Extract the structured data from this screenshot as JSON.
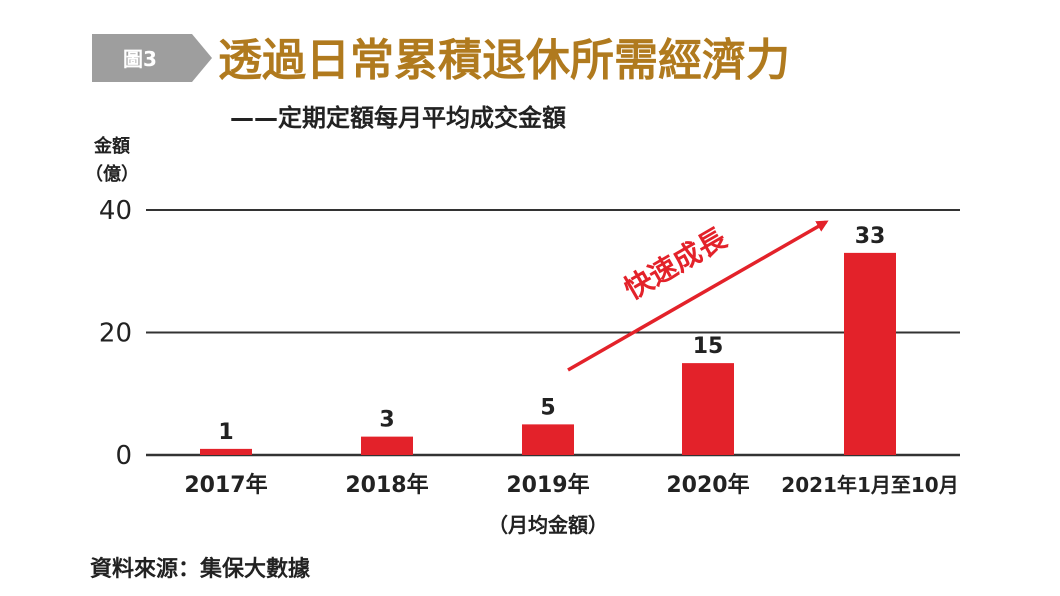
{
  "figure": {
    "label": "圖3",
    "title": "透過日常累積退休所需經濟力",
    "subtitle": "——定期定額每月平均成交金額",
    "source": "資料來源：集保大數據",
    "annotation": "快速成長"
  },
  "colors": {
    "bar": "#e3222a",
    "title": "#b07a1e",
    "label_box": "#9e9e9e",
    "grid": "#333333",
    "arrow": "#e3222a",
    "text": "#222222"
  },
  "chart_data": {
    "type": "bar",
    "ylabel": "金額（億）",
    "ylabel_lines": [
      "金額",
      "（億）"
    ],
    "ylim": [
      0,
      40
    ],
    "yticks": [
      "0",
      "20",
      "40"
    ],
    "grid": true,
    "categories": [
      "2017年",
      "2018年",
      "2019年",
      "2020年",
      "2021年1月至10月"
    ],
    "values": [
      1,
      3,
      5,
      15,
      33
    ],
    "data_labels": [
      "1",
      "3",
      "5",
      "15",
      "33"
    ],
    "x_note": "（月均金額）",
    "x_note_category_index": 2
  }
}
